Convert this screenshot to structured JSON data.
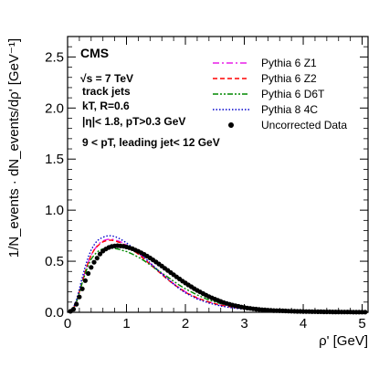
{
  "chart_data": {
    "type": "line",
    "xlabel": "ρ' [GeV]",
    "ylabel": "1/N_events · dN_events/dρ' [GeV⁻¹]",
    "xlim": [
      0,
      5.1
    ],
    "ylim": [
      0,
      2.7
    ],
    "xticks": [
      "0",
      "1",
      "2",
      "3",
      "4",
      "5"
    ],
    "yticks": [
      "0.0",
      "0.5",
      "1.0",
      "1.5",
      "2.0",
      "2.5"
    ],
    "grid": false,
    "legend_position": "top-right",
    "annotations": {
      "experiment": "CMS",
      "energy": "√s = 7 TeV",
      "jets": "track jets",
      "algo": "kT, R=0.6",
      "cuts": "|η|< 1.8, pT>0.3 GeV",
      "range": "9 < pT, leading jet< 12 GeV"
    },
    "x": [
      0.0,
      0.05,
      0.1,
      0.15,
      0.2,
      0.25,
      0.3,
      0.35,
      0.4,
      0.45,
      0.5,
      0.55,
      0.6,
      0.65,
      0.7,
      0.75,
      0.8,
      0.85,
      0.9,
      0.95,
      1.0,
      1.1,
      1.2,
      1.3,
      1.4,
      1.5,
      1.6,
      1.7,
      1.8,
      1.9,
      2.0,
      2.2,
      2.4,
      2.6,
      2.8,
      3.0,
      3.2,
      3.4,
      3.6,
      3.8,
      4.0,
      4.2,
      4.4,
      4.6,
      4.8,
      5.0,
      5.1
    ],
    "series": [
      {
        "name": "Pythia 6 Z1",
        "color": "#e81fe8",
        "dash": "dashdot",
        "values": [
          0.0,
          0.01,
          0.04,
          0.1,
          0.2,
          0.3,
          0.4,
          0.49,
          0.56,
          0.61,
          0.65,
          0.68,
          0.7,
          0.71,
          0.715,
          0.715,
          0.71,
          0.7,
          0.69,
          0.675,
          0.66,
          0.62,
          0.58,
          0.53,
          0.48,
          0.43,
          0.38,
          0.33,
          0.28,
          0.24,
          0.2,
          0.14,
          0.1,
          0.07,
          0.05,
          0.035,
          0.025,
          0.018,
          0.013,
          0.009,
          0.007,
          0.005,
          0.004,
          0.003,
          0.002,
          0.0015,
          0.001
        ]
      },
      {
        "name": "Pythia 6 Z2",
        "color": "#ff0000",
        "dash": "dashed",
        "values": [
          0.0,
          0.01,
          0.04,
          0.1,
          0.2,
          0.3,
          0.4,
          0.49,
          0.56,
          0.61,
          0.645,
          0.67,
          0.69,
          0.7,
          0.705,
          0.705,
          0.7,
          0.69,
          0.68,
          0.665,
          0.65,
          0.61,
          0.57,
          0.52,
          0.47,
          0.42,
          0.37,
          0.32,
          0.275,
          0.235,
          0.195,
          0.14,
          0.1,
          0.07,
          0.05,
          0.035,
          0.025,
          0.018,
          0.013,
          0.009,
          0.007,
          0.005,
          0.004,
          0.003,
          0.002,
          0.0015,
          0.001
        ]
      },
      {
        "name": "Pythia 6 D6T",
        "color": "#008800",
        "dash": "dashdotdot",
        "values": [
          0.0,
          0.01,
          0.04,
          0.1,
          0.19,
          0.29,
          0.38,
          0.46,
          0.52,
          0.56,
          0.59,
          0.61,
          0.62,
          0.625,
          0.628,
          0.628,
          0.625,
          0.62,
          0.612,
          0.603,
          0.595,
          0.57,
          0.54,
          0.505,
          0.465,
          0.425,
          0.385,
          0.345,
          0.305,
          0.265,
          0.23,
          0.17,
          0.12,
          0.085,
          0.06,
          0.04,
          0.028,
          0.02,
          0.014,
          0.01,
          0.007,
          0.005,
          0.004,
          0.003,
          0.002,
          0.0015,
          0.001
        ]
      },
      {
        "name": "Pythia 8 4C",
        "color": "#0000cc",
        "dash": "dotted",
        "values": [
          0.0,
          0.01,
          0.05,
          0.12,
          0.23,
          0.34,
          0.45,
          0.54,
          0.61,
          0.66,
          0.7,
          0.72,
          0.735,
          0.745,
          0.75,
          0.748,
          0.742,
          0.73,
          0.715,
          0.698,
          0.68,
          0.635,
          0.59,
          0.54,
          0.485,
          0.43,
          0.375,
          0.325,
          0.275,
          0.23,
          0.19,
          0.13,
          0.09,
          0.062,
          0.043,
          0.03,
          0.021,
          0.015,
          0.011,
          0.008,
          0.006,
          0.004,
          0.003,
          0.002,
          0.0015,
          0.001,
          0.001
        ]
      }
    ],
    "data_series": {
      "name": "Uncorrected Data",
      "color": "#000000",
      "marker": "circle",
      "x": [
        0.05,
        0.1,
        0.15,
        0.2,
        0.25,
        0.3,
        0.35,
        0.4,
        0.45,
        0.5,
        0.55,
        0.6,
        0.65,
        0.7,
        0.75,
        0.8,
        0.85,
        0.9,
        0.95,
        1.0,
        1.05,
        1.1,
        1.15,
        1.2,
        1.25,
        1.3,
        1.35,
        1.4,
        1.45,
        1.5,
        1.55,
        1.6,
        1.65,
        1.7,
        1.75,
        1.8,
        1.85,
        1.9,
        1.95,
        2.0,
        2.05,
        2.1,
        2.15,
        2.2,
        2.25,
        2.3,
        2.35,
        2.4,
        2.45,
        2.5,
        2.55,
        2.6,
        2.65,
        2.7,
        2.75,
        2.8,
        2.85,
        2.9,
        2.95,
        3.0,
        3.05,
        3.1,
        3.15,
        3.2,
        3.25,
        3.3,
        3.35,
        3.4,
        3.45,
        3.5,
        3.55,
        3.6,
        3.65,
        3.7,
        3.75,
        3.8,
        3.85,
        3.9,
        3.95,
        4.0,
        4.05,
        4.1,
        4.15,
        4.2,
        4.25,
        4.3,
        4.35,
        4.4,
        4.45,
        4.5,
        4.55,
        4.6,
        4.65,
        4.7,
        4.75,
        4.8,
        4.85,
        4.9,
        4.95,
        5.0,
        5.05
      ],
      "values": [
        0.01,
        0.03,
        0.08,
        0.15,
        0.23,
        0.31,
        0.38,
        0.44,
        0.49,
        0.53,
        0.57,
        0.6,
        0.62,
        0.635,
        0.645,
        0.65,
        0.652,
        0.65,
        0.646,
        0.64,
        0.632,
        0.622,
        0.61,
        0.597,
        0.583,
        0.567,
        0.55,
        0.532,
        0.513,
        0.493,
        0.473,
        0.452,
        0.431,
        0.41,
        0.389,
        0.368,
        0.347,
        0.326,
        0.306,
        0.287,
        0.268,
        0.25,
        0.232,
        0.215,
        0.199,
        0.183,
        0.168,
        0.154,
        0.141,
        0.129,
        0.117,
        0.106,
        0.096,
        0.087,
        0.079,
        0.071,
        0.064,
        0.058,
        0.052,
        0.047,
        0.042,
        0.038,
        0.034,
        0.031,
        0.028,
        0.025,
        0.023,
        0.021,
        0.019,
        0.017,
        0.016,
        0.015,
        0.014,
        0.013,
        0.012,
        0.011,
        0.01,
        0.009,
        0.0085,
        0.008,
        0.0075,
        0.007,
        0.0065,
        0.006,
        0.0055,
        0.005,
        0.0047,
        0.0044,
        0.0041,
        0.0038,
        0.0035,
        0.0032,
        0.003,
        0.0028,
        0.0026,
        0.0024,
        0.0022,
        0.002,
        0.0018,
        0.0016,
        0.0015
      ]
    }
  }
}
